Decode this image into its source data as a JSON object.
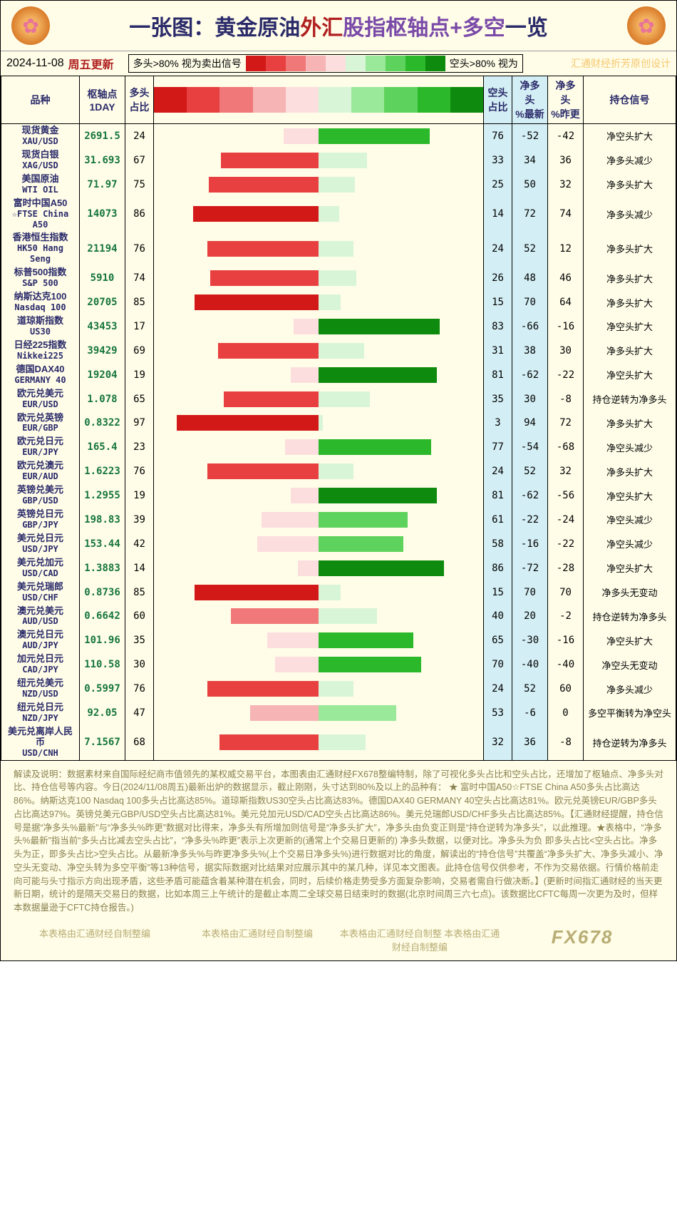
{
  "title": {
    "seg1": "一张图：黄金原油",
    "seg2": "外汇",
    "seg3": "股指枢轴点+多空",
    "seg4": "一览"
  },
  "date": "2024-11-08",
  "weekday": "周五更新",
  "legend": {
    "long": "多头>80% 视为卖出信号",
    "short": "空头>80% 视为"
  },
  "watermark": "汇通财经折芳原创设计",
  "gradient": [
    "#d31818",
    "#e84040",
    "#f07878",
    "#f7b4b4",
    "#fcdede",
    "#d8f5d8",
    "#9ae89a",
    "#5dd35d",
    "#2bb82b",
    "#0e8a0e"
  ],
  "headers": {
    "name": "品种",
    "pivot": "枢轴点",
    "pivot_sub": "1DAY",
    "long": "多头",
    "long_sub": "占比",
    "short": "空头",
    "short_sub": "占比",
    "net_new": "净多头",
    "net_new_sub": "%最新",
    "net_prev": "净多头",
    "net_prev_sub": "%昨更",
    "signal": "持仓信号"
  },
  "bar_area_width": 410,
  "groups": [
    {
      "rows": [
        {
          "name_cn": "现货黄金",
          "name_en": "XAU/USD",
          "pivot": "2691.5",
          "long": 24,
          "short": 76,
          "net_new": -52,
          "net_prev": -42,
          "signal": "净空头扩大"
        },
        {
          "name_cn": "现货白银",
          "name_en": "XAG/USD",
          "pivot": "31.693",
          "long": 67,
          "short": 33,
          "net_new": 34,
          "net_prev": 36,
          "signal": "净多头减少"
        },
        {
          "name_cn": "美国原油",
          "name_en": "WTI OIL",
          "pivot": "71.97",
          "long": 75,
          "short": 25,
          "net_new": 50,
          "net_prev": 32,
          "signal": "净多头扩大"
        }
      ]
    },
    {
      "rows": [
        {
          "name_cn": "富时中国A50",
          "name_en": "☆FTSE China A50",
          "pivot": "14073",
          "long": 86,
          "short": 14,
          "net_new": 72,
          "net_prev": 74,
          "signal": "净多头减少"
        },
        {
          "name_cn": "香港恒生指数",
          "name_en": "HK50 Hang Seng",
          "pivot": "21194",
          "long": 76,
          "short": 24,
          "net_new": 52,
          "net_prev": 12,
          "signal": "净多头扩大"
        },
        {
          "name_cn": "标普500指数",
          "name_en": "S&P 500",
          "pivot": "5910",
          "long": 74,
          "short": 26,
          "net_new": 48,
          "net_prev": 46,
          "signal": "净多头扩大"
        },
        {
          "name_cn": "纳斯达克100",
          "name_en": "Nasdaq 100",
          "pivot": "20705",
          "long": 85,
          "short": 15,
          "net_new": 70,
          "net_prev": 64,
          "signal": "净多头扩大"
        },
        {
          "name_cn": "道琼斯指数",
          "name_en": "US30",
          "pivot": "43453",
          "long": 17,
          "short": 83,
          "net_new": -66,
          "net_prev": -16,
          "signal": "净空头扩大"
        },
        {
          "name_cn": "日经225指数",
          "name_en": "Nikkei225",
          "pivot": "39429",
          "long": 69,
          "short": 31,
          "net_new": 38,
          "net_prev": 30,
          "signal": "净多头扩大"
        },
        {
          "name_cn": "德国DAX40",
          "name_en": "GERMANY 40",
          "pivot": "19204",
          "long": 19,
          "short": 81,
          "net_new": -62,
          "net_prev": -22,
          "signal": "净空头扩大"
        }
      ]
    },
    {
      "rows": [
        {
          "name_cn": "欧元兑美元",
          "name_en": "EUR/USD",
          "pivot": "1.078",
          "long": 65,
          "short": 35,
          "net_new": 30,
          "net_prev": -8,
          "signal": "持仓逆转为净多头"
        },
        {
          "name_cn": "欧元兑英镑",
          "name_en": "EUR/GBP",
          "pivot": "0.8322",
          "long": 97,
          "short": 3,
          "net_new": 94,
          "net_prev": 72,
          "signal": "净多头扩大"
        },
        {
          "name_cn": "欧元兑日元",
          "name_en": "EUR/JPY",
          "pivot": "165.4",
          "long": 23,
          "short": 77,
          "net_new": -54,
          "net_prev": -68,
          "signal": "净空头减少"
        },
        {
          "name_cn": "欧元兑澳元",
          "name_en": "EUR/AUD",
          "pivot": "1.6223",
          "long": 76,
          "short": 24,
          "net_new": 52,
          "net_prev": 32,
          "signal": "净多头扩大"
        },
        {
          "name_cn": "英镑兑美元",
          "name_en": "GBP/USD",
          "pivot": "1.2955",
          "long": 19,
          "short": 81,
          "net_new": -62,
          "net_prev": -56,
          "signal": "净空头扩大"
        },
        {
          "name_cn": "英镑兑日元",
          "name_en": "GBP/JPY",
          "pivot": "198.83",
          "long": 39,
          "short": 61,
          "net_new": -22,
          "net_prev": -24,
          "signal": "净空头减少"
        },
        {
          "name_cn": "美元兑日元",
          "name_en": "USD/JPY",
          "pivot": "153.44",
          "long": 42,
          "short": 58,
          "net_new": -16,
          "net_prev": -22,
          "signal": "净空头减少"
        },
        {
          "name_cn": "美元兑加元",
          "name_en": "USD/CAD",
          "pivot": "1.3883",
          "long": 14,
          "short": 86,
          "net_new": -72,
          "net_prev": -28,
          "signal": "净空头扩大"
        },
        {
          "name_cn": "美元兑瑞郎",
          "name_en": "USD/CHF",
          "pivot": "0.8736",
          "long": 85,
          "short": 15,
          "net_new": 70,
          "net_prev": 70,
          "signal": "净多头无变动"
        },
        {
          "name_cn": "澳元兑美元",
          "name_en": "AUD/USD",
          "pivot": "0.6642",
          "long": 60,
          "short": 40,
          "net_new": 20,
          "net_prev": -2,
          "signal": "持仓逆转为净多头"
        },
        {
          "name_cn": "澳元兑日元",
          "name_en": "AUD/JPY",
          "pivot": "101.96",
          "long": 35,
          "short": 65,
          "net_new": -30,
          "net_prev": -16,
          "signal": "净空头扩大"
        },
        {
          "name_cn": "加元兑日元",
          "name_en": "CAD/JPY",
          "pivot": "110.58",
          "long": 30,
          "short": 70,
          "net_new": -40,
          "net_prev": -40,
          "signal": "净空头无变动"
        },
        {
          "name_cn": "纽元兑美元",
          "name_en": "NZD/USD",
          "pivot": "0.5997",
          "long": 76,
          "short": 24,
          "net_new": 52,
          "net_prev": 60,
          "signal": "净多头减少"
        },
        {
          "name_cn": "纽元兑日元",
          "name_en": "NZD/JPY",
          "pivot": "92.05",
          "long": 47,
          "short": 53,
          "net_new": -6,
          "net_prev": 0,
          "signal": "多空平衡转为净空头"
        },
        {
          "name_cn": "美元兑离岸人民币",
          "name_en": "USD/CNH",
          "pivot": "7.1567",
          "long": 68,
          "short": 32,
          "net_new": 36,
          "net_prev": -8,
          "signal": "持仓逆转为净多头"
        }
      ]
    }
  ],
  "footer": "解读及说明：数据素材来自国际经纪商市值领先的某权威交易平台，本图表由汇通财经FX678整编特制，除了可视化多头占比和空头占比，还增加了枢轴点、净多头对比、持仓信号等内容。今日(2024/11/08周五)最新出炉的数据显示，截止刚刚，头寸达到80%及以上的品种有：\n★ 富时中国A50☆FTSE China A50多头占比高达86%。纳斯达克100 Nasdaq 100多头占比高达85%。道琼斯指数US30空头占比高达83%。德国DAX40 GERMANY 40空头占比高达81%。欧元兑英镑EUR/GBP多头占比高达97%。英镑兑美元GBP/USD空头占比高达81%。美元兑加元USD/CAD空头占比高达86%。美元兑瑞郎USD/CHF多头占比高达85%。【汇通财经提醒，持仓信号是据“净多头%最新”与“净多头%昨更”数据对比得来，净多头有所增加则信号是“净多头扩大”，净多头由负变正则是“持仓逆转为净多头”，以此推理。★表格中，“净多头%最新”指当前“多头占比减去空头占比”，“净多头%昨更”表示上次更新的(通常上个交易日更新的) 净多头数据，以便对比。净多头为负 即多头占比<空头占比。净多头为正，即多头占比>空头占比。从最新净多头%与昨更净多头%(上个交易日净多头%)进行数据对比的角度，解读出的“持仓信号”共覆盖“净多头扩大、净多头减小、净空头无变动、净空头转为多空平衡”等13种信号，据实际数据对比结果对应展示其中的某几种，详见本文图表。此持仓信号仅供参考，不作为交易依据。行情价格前走向可能与头寸指示方向出现矛盾，这些矛盾可能蕴含着某种潜在机会，同时，后续价格走势受多方面复杂影响，交易者需自行做决断。】(更新时间指汇通财经的当天更新日期，统计的是隔天交易日的数据，比如本周三上午统计的是截止本周二全球交易日结束时的数据(北京时间周三六七点)。该数据比CFTC每周一次更为及时，但样本数据量逊于CFTC持仓报告。)",
  "credits": [
    "本表格由汇通财经自制整编",
    "本表格由汇通财经自制整编",
    "本表格由汇通财经自制整 本表格由汇通财经自制整编"
  ],
  "brand": "FX678"
}
